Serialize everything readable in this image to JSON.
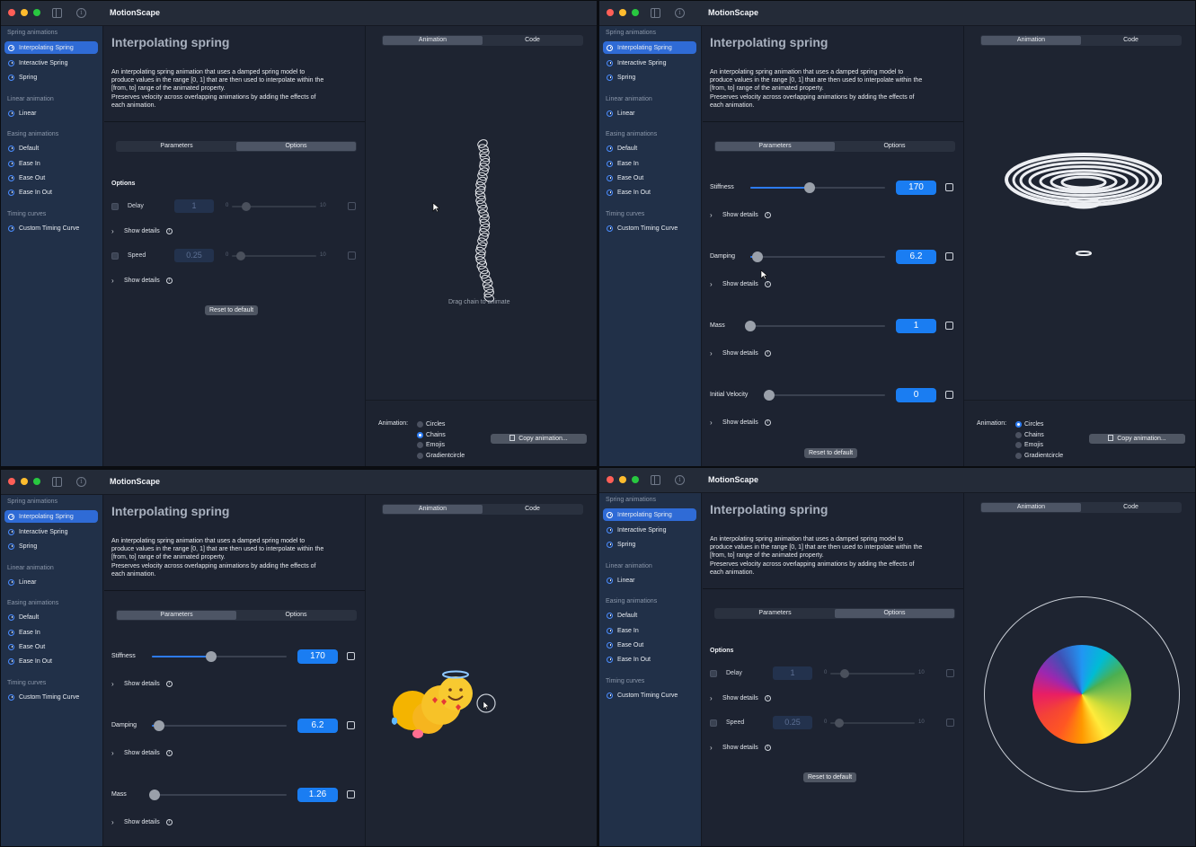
{
  "app_title": "MotionScape",
  "sidebar": {
    "sections": [
      {
        "header": "Spring animations",
        "items": [
          "Interpolating Spring",
          "Interactive Spring",
          "Spring"
        ]
      },
      {
        "header": "Linear animation",
        "items": [
          "Linear"
        ]
      },
      {
        "header": "Easing animations",
        "items": [
          "Default",
          "Ease In",
          "Ease Out",
          "Ease In Out"
        ]
      },
      {
        "header": "Timing curves",
        "items": [
          "Custom Timing Curve"
        ]
      }
    ],
    "active_item": "Interpolating Spring"
  },
  "page": {
    "title": "Interpolating spring",
    "description": "An interpolating spring animation that uses a damped spring model to\nproduce values in the range [0, 1] that are then used to interpolate within the\n[from, to] range of the animated property.\nPreserves velocity across overlapping animations by adding the effects of\neach animation."
  },
  "tabs": {
    "parameters": "Parameters",
    "options": "Options"
  },
  "preview_tabs": {
    "animation": "Animation",
    "code": "Code"
  },
  "options": {
    "header": "Options",
    "delay": {
      "label": "Delay",
      "value": "1",
      "min": "0",
      "max": "10",
      "fraction": 0.2
    },
    "speed": {
      "label": "Speed",
      "value": "0.25",
      "min": "0",
      "max": "10",
      "fraction": 0.09
    }
  },
  "parameters": {
    "stiffness": {
      "label": "Stiffness",
      "value": "170",
      "fraction": 0.44
    },
    "damping": {
      "label": "Damping",
      "value": "6.2",
      "fraction": 0.05
    },
    "mass": {
      "label": "Mass",
      "value": "1",
      "fraction": 0.0
    },
    "mass_alt": {
      "label": "Mass",
      "value": "1.26",
      "fraction": 0.02
    },
    "initial_velocity": {
      "label": "Initial Velocity",
      "value": "0",
      "fraction": 0.15
    }
  },
  "show_details": "Show details",
  "reset_label": "Reset to default",
  "animation_picker": {
    "label": "Animation:",
    "options": [
      "Circles",
      "Chains",
      "Emojis",
      "Gradientcircle"
    ]
  },
  "copy_label": "Copy animation...",
  "drag_hint": "Drag chain to animate",
  "panels": [
    {
      "selected_tab": "options",
      "selected_animation": "Chains"
    },
    {
      "selected_tab": "parameters",
      "selected_animation": "Circles"
    },
    {
      "selected_tab": "parameters",
      "selected_animation": "Emojis"
    },
    {
      "selected_tab": "options",
      "selected_animation": "Gradientcircle"
    }
  ],
  "colors": {
    "accent": "#2d7bf0",
    "sidebar_active": "#2f6bd6",
    "sidebar_bg": "#213048",
    "content_bg": "#1d2331"
  },
  "emoji_cluster": "😇😍🥰😜"
}
